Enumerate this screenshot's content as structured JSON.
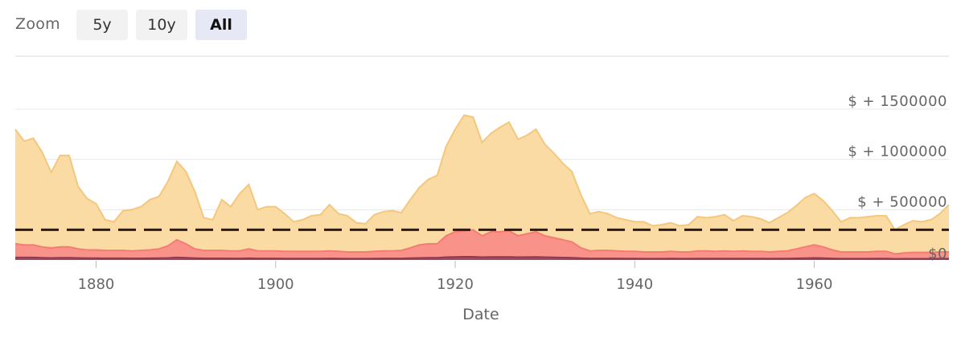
{
  "zoom": {
    "label": "Zoom",
    "buttons": [
      {
        "label": "5y",
        "active": false
      },
      {
        "label": "10y",
        "active": false
      },
      {
        "label": "All",
        "active": true
      }
    ]
  },
  "chart_data": {
    "type": "area",
    "xlabel": "Date",
    "ylabel": "",
    "x_ticks": [
      1880,
      1900,
      1920,
      1940,
      1960
    ],
    "y_ticks": [
      {
        "value": 0,
        "label": "$0"
      },
      {
        "value": 500000,
        "label": "$ + 500000"
      },
      {
        "value": 1000000,
        "label": "$ + 1000000"
      },
      {
        "value": 1500000,
        "label": "$ + 1500000"
      }
    ],
    "xlim": [
      1871,
      1975
    ],
    "ylim": [
      0,
      1500000
    ],
    "reference_line": {
      "value": 300000,
      "style": "dashed"
    },
    "grid": true,
    "x": [
      1871,
      1872,
      1873,
      1874,
      1875,
      1876,
      1877,
      1878,
      1879,
      1880,
      1881,
      1882,
      1883,
      1884,
      1885,
      1886,
      1887,
      1888,
      1889,
      1890,
      1891,
      1892,
      1893,
      1894,
      1895,
      1896,
      1897,
      1898,
      1899,
      1900,
      1901,
      1902,
      1903,
      1904,
      1905,
      1906,
      1907,
      1908,
      1909,
      1910,
      1911,
      1912,
      1913,
      1914,
      1915,
      1916,
      1917,
      1918,
      1919,
      1920,
      1921,
      1922,
      1923,
      1924,
      1925,
      1926,
      1927,
      1928,
      1929,
      1930,
      1931,
      1932,
      1933,
      1934,
      1935,
      1936,
      1937,
      1938,
      1939,
      1940,
      1941,
      1942,
      1943,
      1944,
      1945,
      1946,
      1947,
      1948,
      1949,
      1950,
      1951,
      1952,
      1953,
      1954,
      1955,
      1956,
      1957,
      1958,
      1959,
      1960,
      1961,
      1962,
      1963,
      1964,
      1965,
      1966,
      1967,
      1968,
      1969,
      1970,
      1971,
      1972,
      1973,
      1974,
      1975
    ],
    "series": [
      {
        "color": "#fbdba4",
        "values": [
          1300000,
          1180000,
          1210000,
          1070000,
          870000,
          1040000,
          1040000,
          730000,
          610000,
          560000,
          400000,
          380000,
          490000,
          500000,
          530000,
          600000,
          630000,
          780000,
          980000,
          880000,
          680000,
          420000,
          400000,
          600000,
          530000,
          660000,
          750000,
          500000,
          530000,
          530000,
          460000,
          380000,
          400000,
          440000,
          450000,
          550000,
          460000,
          440000,
          370000,
          360000,
          450000,
          480000,
          490000,
          470000,
          600000,
          720000,
          800000,
          840000,
          1130000,
          1300000,
          1440000,
          1420000,
          1170000,
          1260000,
          1320000,
          1370000,
          1200000,
          1240000,
          1300000,
          1150000,
          1060000,
          960000,
          880000,
          650000,
          460000,
          480000,
          460000,
          420000,
          400000,
          380000,
          380000,
          340000,
          350000,
          370000,
          340000,
          350000,
          430000,
          420000,
          430000,
          450000,
          390000,
          440000,
          430000,
          410000,
          370000,
          420000,
          470000,
          540000,
          620000,
          660000,
          590000,
          490000,
          380000,
          420000,
          420000,
          430000,
          440000,
          440000,
          300000,
          350000,
          390000,
          380000,
          400000,
          460000,
          550000
        ]
      },
      {
        "color": "#f9938a",
        "values": [
          160000,
          150000,
          150000,
          130000,
          120000,
          130000,
          130000,
          110000,
          100000,
          100000,
          95000,
          95000,
          95000,
          90000,
          95000,
          100000,
          110000,
          140000,
          200000,
          160000,
          110000,
          95000,
          95000,
          95000,
          90000,
          90000,
          110000,
          90000,
          90000,
          90000,
          85000,
          85000,
          85000,
          85000,
          85000,
          90000,
          85000,
          80000,
          80000,
          80000,
          85000,
          90000,
          90000,
          95000,
          120000,
          150000,
          160000,
          160000,
          240000,
          280000,
          290000,
          300000,
          240000,
          280000,
          280000,
          290000,
          240000,
          260000,
          280000,
          240000,
          220000,
          200000,
          180000,
          120000,
          90000,
          95000,
          95000,
          90000,
          85000,
          85000,
          80000,
          80000,
          80000,
          85000,
          80000,
          80000,
          90000,
          90000,
          85000,
          90000,
          85000,
          90000,
          85000,
          85000,
          80000,
          85000,
          90000,
          110000,
          130000,
          150000,
          130000,
          100000,
          80000,
          80000,
          80000,
          80000,
          85000,
          85000,
          60000,
          70000,
          75000,
          75000,
          75000,
          80000,
          80000
        ]
      },
      {
        "color": "#a34a5f",
        "values": [
          25000,
          25000,
          25000,
          22000,
          20000,
          22000,
          22000,
          20000,
          18000,
          18000,
          17000,
          17000,
          17000,
          16000,
          16000,
          17000,
          18000,
          20000,
          25000,
          22000,
          18000,
          16000,
          16000,
          16000,
          15000,
          15000,
          17000,
          15000,
          15000,
          15000,
          14000,
          14000,
          14000,
          14000,
          14000,
          15000,
          14000,
          13000,
          13000,
          13000,
          14000,
          15000,
          15000,
          15000,
          18000,
          20000,
          22000,
          22000,
          28000,
          30000,
          32000,
          32000,
          28000,
          30000,
          30000,
          30000,
          28000,
          29000,
          30000,
          28000,
          26000,
          24000,
          22000,
          18000,
          15000,
          15000,
          15000,
          15000,
          14000,
          14000,
          13000,
          13000,
          13000,
          14000,
          13000,
          13000,
          14000,
          14000,
          14000,
          14000,
          14000,
          14000,
          14000,
          14000,
          13000,
          14000,
          14000,
          16000,
          18000,
          20000,
          18000,
          15000,
          13000,
          13000,
          13000,
          13000,
          14000,
          14000,
          11000,
          12000,
          12000,
          12000,
          12000,
          13000,
          13000
        ]
      }
    ]
  }
}
